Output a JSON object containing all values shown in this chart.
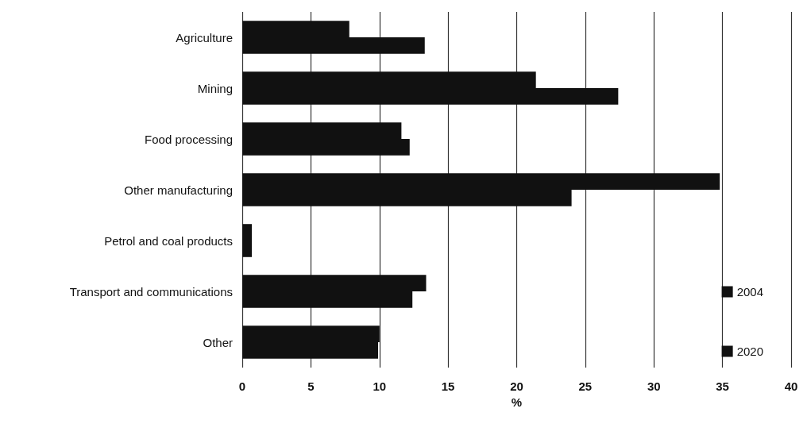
{
  "chart_data": {
    "type": "bar",
    "orientation": "horizontal",
    "xlabel": "%",
    "categories": [
      "Agriculture",
      "Mining",
      "Food processing",
      "Other manufacturing",
      "Petrol and coal products",
      "Transport and communications",
      "Other"
    ],
    "series": [
      {
        "name": "2004",
        "color": "#111111",
        "values": [
          7.8,
          21.4,
          11.6,
          34.8,
          0.7,
          13.4,
          10.0
        ]
      },
      {
        "name": "2020",
        "color": "#111111",
        "values": [
          13.3,
          27.4,
          12.2,
          24.0,
          0.7,
          12.4,
          9.9
        ]
      }
    ],
    "xlim": [
      0,
      40
    ],
    "xticks": [
      0,
      5,
      10,
      15,
      20,
      25,
      30,
      35,
      40
    ],
    "grid": "x",
    "legend": "right"
  }
}
